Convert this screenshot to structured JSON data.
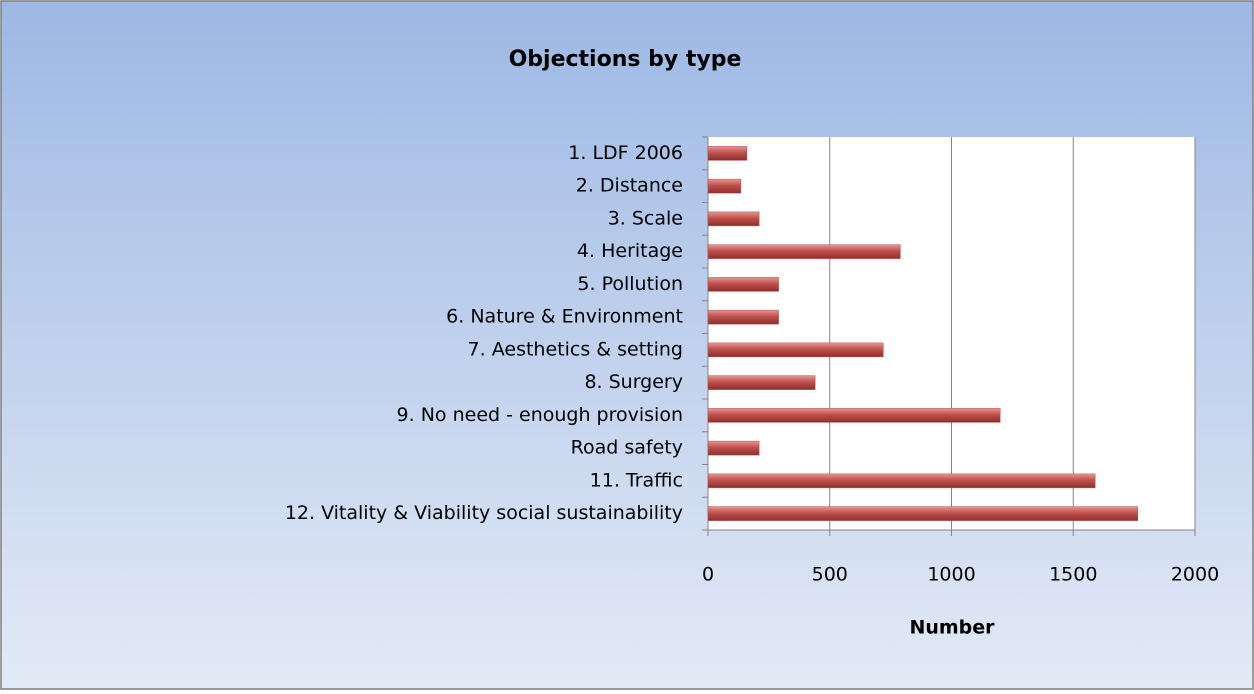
{
  "chart_data": {
    "type": "bar",
    "orientation": "horizontal",
    "title": "Objections by type",
    "x_label": "Number",
    "categories": [
      "1. LDF 2006",
      "2. Distance",
      "3. Scale",
      "4. Heritage",
      "5. Pollution",
      "6. Nature & Environment",
      "7. Aesthetics & setting",
      "8. Surgery",
      "9. No need - enough provision",
      "Road safety",
      "11. Traffic",
      "12. Vitality & Viability social sustainability"
    ],
    "values": [
      160,
      135,
      210,
      790,
      290,
      290,
      720,
      440,
      1200,
      210,
      1590,
      1765
    ],
    "color": "#c0504d",
    "xlim": [
      0,
      2000
    ],
    "xticks": [
      0,
      500,
      1000,
      1500,
      2000
    ],
    "grid": true
  }
}
